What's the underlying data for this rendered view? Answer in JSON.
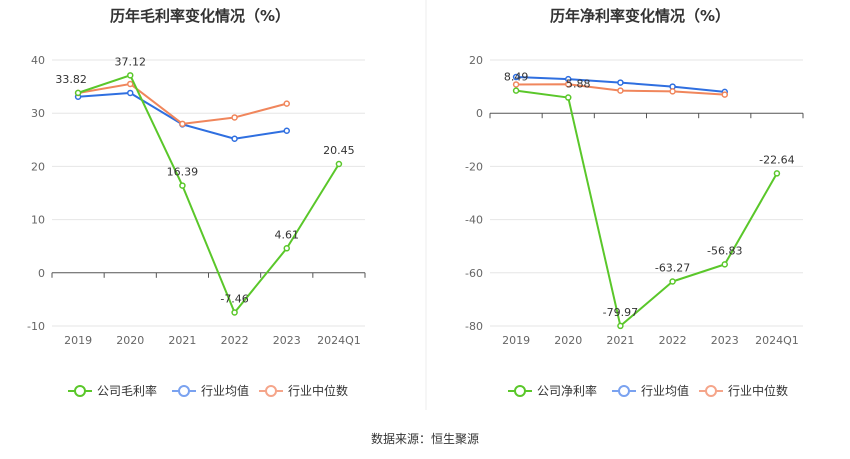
{
  "source_label": "数据来源：恒生聚源",
  "legend_colors": {
    "company": "#5ac72a",
    "industry_avg": "#7aa2f0",
    "industry_median": "#f5a58a"
  },
  "chart_data": [
    {
      "type": "line",
      "title": "历年毛利率变化情况（%）",
      "categories": [
        "2019",
        "2020",
        "2021",
        "2022",
        "2023",
        "2024Q1"
      ],
      "ylim": [
        -10,
        40
      ],
      "yticks": [
        40,
        30,
        20,
        10,
        0,
        -10
      ],
      "series": [
        {
          "name": "公司毛利率",
          "color": "#5ac72a",
          "values": [
            33.82,
            37.12,
            16.39,
            -7.46,
            4.61,
            20.45
          ],
          "labels": [
            "33.82",
            "37.12",
            "16.39",
            "-7.46",
            "4.61",
            "20.45"
          ]
        },
        {
          "name": "行业均值",
          "color": "#2f6fe0",
          "values": [
            33.1,
            33.8,
            27.9,
            25.2,
            26.7,
            null
          ]
        },
        {
          "name": "行业中位数",
          "color": "#f0865c",
          "values": [
            33.8,
            35.5,
            28.0,
            29.2,
            31.8,
            null
          ]
        }
      ]
    },
    {
      "type": "line",
      "title": "历年净利率变化情况（%）",
      "categories": [
        "2019",
        "2020",
        "2021",
        "2022",
        "2023",
        "2024Q1"
      ],
      "ylim": [
        -80,
        20
      ],
      "yticks": [
        20,
        0,
        -20,
        -40,
        -60,
        -80
      ],
      "series": [
        {
          "name": "公司净利率",
          "color": "#5ac72a",
          "values": [
            8.49,
            5.88,
            -79.97,
            -63.27,
            -56.83,
            -22.64
          ],
          "labels": [
            "8.49",
            "5.88",
            "-79.97",
            "-63.27",
            "-56.83",
            "-22.64"
          ]
        },
        {
          "name": "行业均值",
          "color": "#2f6fe0",
          "values": [
            13.6,
            12.8,
            11.5,
            10.0,
            8.0,
            null
          ]
        },
        {
          "name": "行业中位数",
          "color": "#f0865c",
          "values": [
            10.8,
            10.9,
            8.5,
            8.2,
            7.0,
            null
          ]
        }
      ]
    }
  ]
}
